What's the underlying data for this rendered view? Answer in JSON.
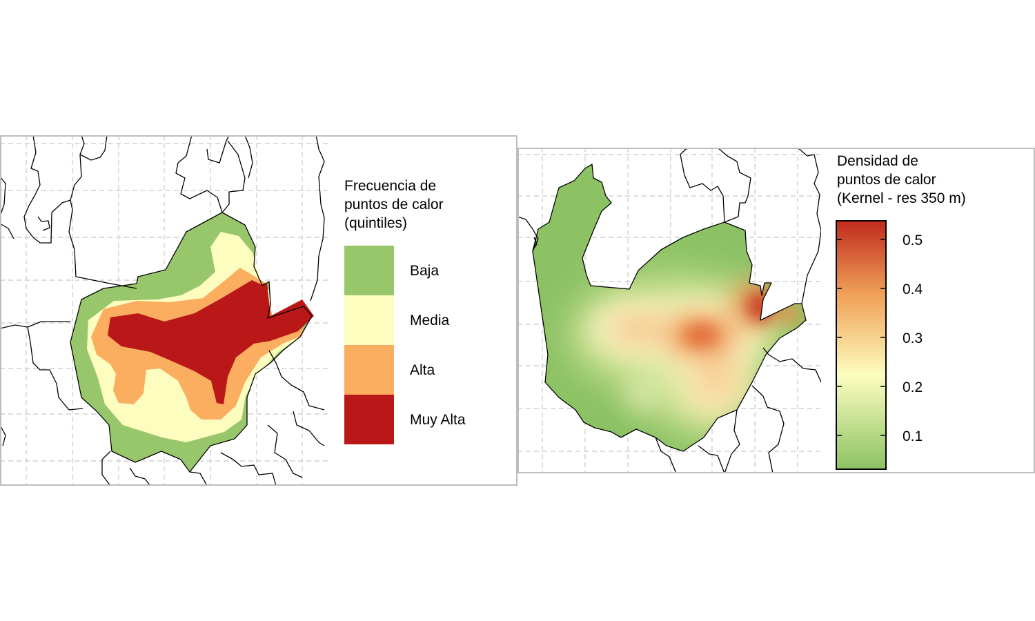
{
  "left_map": {
    "legend_title_lines": [
      "Frecuencia de",
      "puntos de calor",
      "(quintiles)"
    ],
    "classes": [
      {
        "label": "Baja",
        "color": "#98c76b"
      },
      {
        "label": "Media",
        "color": "#fdfdc0"
      },
      {
        "label": "Alta",
        "color": "#fbad60"
      },
      {
        "label": "Muy Alta",
        "color": "#ba1818"
      }
    ]
  },
  "right_map": {
    "legend_title_lines": [
      "Densidad de",
      "puntos de calor",
      "(Kernel - res 350 m)"
    ],
    "ticks": [
      "0.5",
      "0.4",
      "0.3",
      "0.2",
      "0.1"
    ],
    "color_ramp": [
      "#8cc264",
      "#fdfdc0",
      "#f0a259",
      "#c02a1d"
    ]
  }
}
